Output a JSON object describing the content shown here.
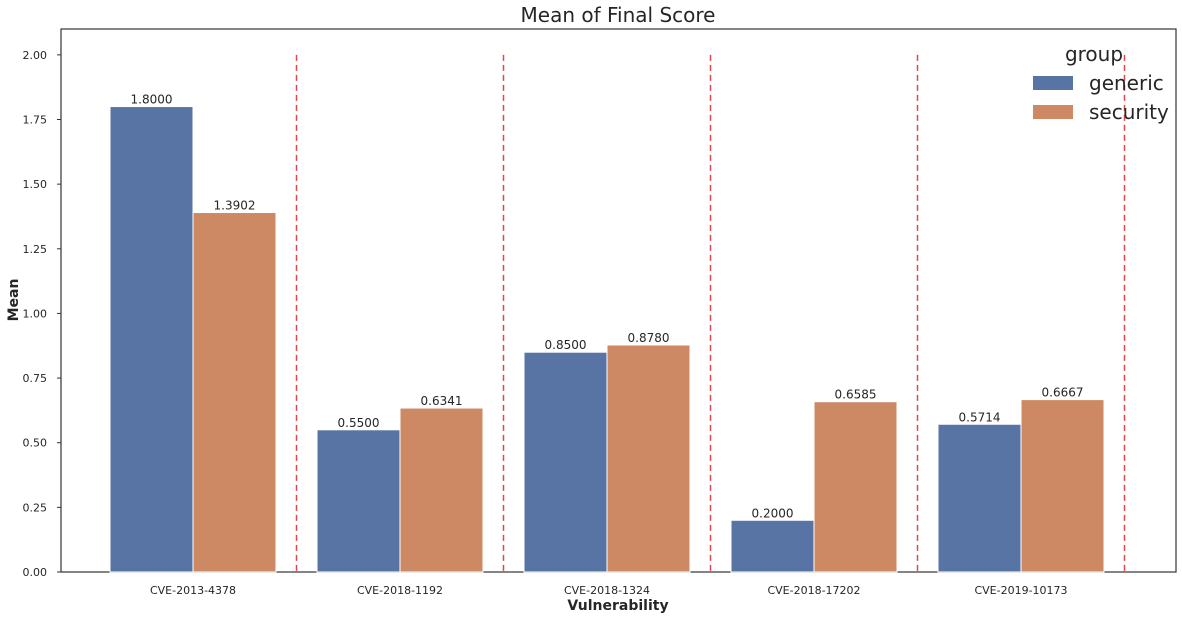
{
  "chart_data": {
    "type": "bar",
    "title": "Mean of Final Score",
    "xlabel": "Vulnerability",
    "ylabel": "Mean",
    "ylim": [
      0,
      2.1
    ],
    "yticks": [
      "0.00",
      "0.25",
      "0.50",
      "0.75",
      "1.00",
      "1.25",
      "1.50",
      "1.75",
      "2.00"
    ],
    "categories": [
      "CVE-2013-4378",
      "CVE-2018-1192",
      "CVE-2018-1324",
      "CVE-2018-17202",
      "CVE-2019-10173"
    ],
    "series": [
      {
        "name": "generic",
        "color": "#5874a4",
        "values": [
          1.8,
          0.55,
          0.85,
          0.2,
          0.5714
        ],
        "labels": [
          "1.8000",
          "0.5500",
          "0.8500",
          "0.2000",
          "0.5714"
        ]
      },
      {
        "name": "security",
        "color": "#cc8963",
        "values": [
          1.3902,
          0.6341,
          0.878,
          0.6585,
          0.6667
        ],
        "labels": [
          "1.3902",
          "0.6341",
          "0.8780",
          "0.6585",
          "0.6667"
        ]
      }
    ],
    "separator_line_color": "#e0474c",
    "separator_top": 2.0,
    "legend": {
      "title": "group",
      "position": "top-right"
    },
    "grid": false
  }
}
